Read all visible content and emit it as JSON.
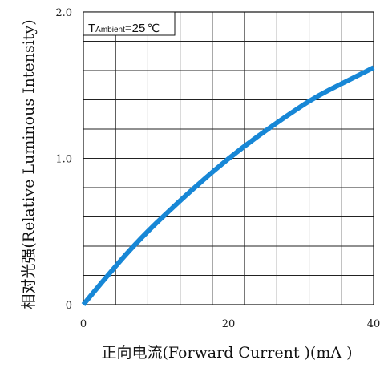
{
  "chart_data": {
    "type": "line",
    "title": "",
    "xlabel": "正向电流(Forward  Current )(mA )",
    "ylabel": "相对光强(Relative  Luminous  Intensity)",
    "xlim": [
      0,
      40
    ],
    "ylim": [
      0,
      2.0
    ],
    "x_ticks": [
      {
        "value": 0,
        "label": "0"
      },
      {
        "value": 20,
        "label": "20"
      },
      {
        "value": 40,
        "label": "40"
      }
    ],
    "y_ticks": [
      {
        "value": 0,
        "label": "0"
      },
      {
        "value": 1.0,
        "label": "1.0"
      },
      {
        "value": 2.0,
        "label": "2.0"
      }
    ],
    "grid": true,
    "grid_x_divisions": 9,
    "grid_y_divisions": 10,
    "annotation": {
      "prefix": "T",
      "subscript": "Ambient",
      "suffix": "=25",
      "unit": "℃"
    },
    "line_color": "#1787d6",
    "series": [
      {
        "x": [
          0,
          4,
          8,
          12,
          16,
          20,
          24,
          28,
          32,
          36,
          40
        ],
        "values": [
          0,
          0.24,
          0.46,
          0.65,
          0.83,
          1.0,
          1.15,
          1.29,
          1.42,
          1.52,
          1.62
        ]
      }
    ]
  }
}
